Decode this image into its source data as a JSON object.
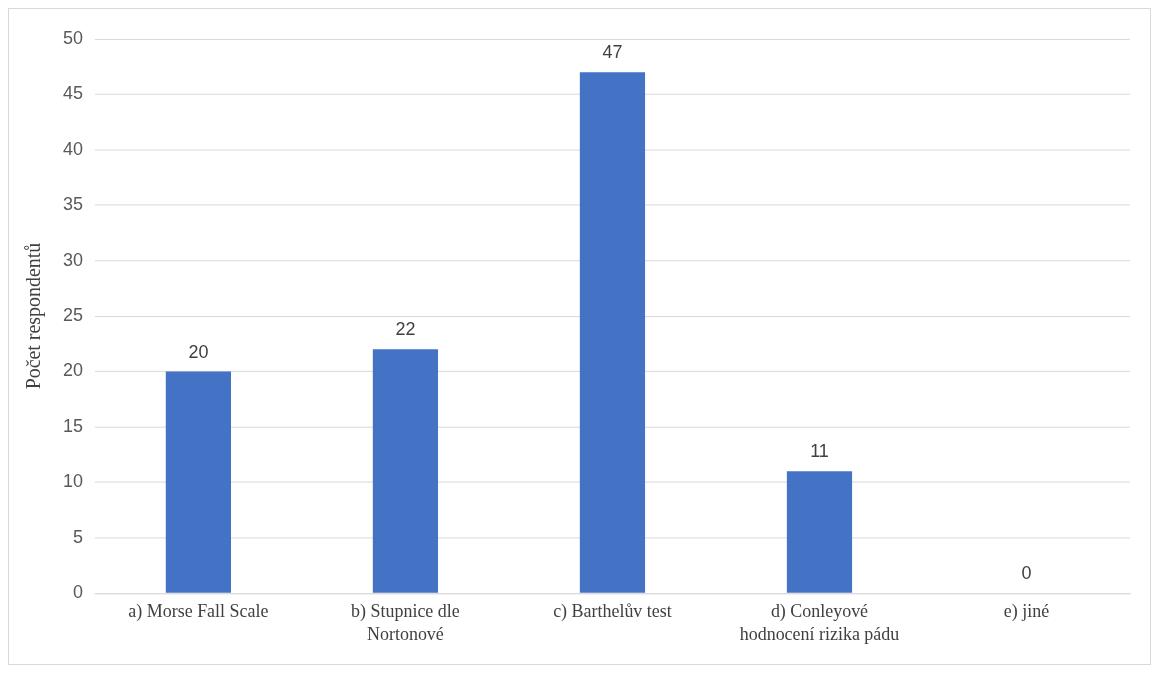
{
  "chart_data": {
    "type": "bar",
    "ylabel": "Počet respondentů",
    "categories": [
      "a) Morse Fall Scale",
      "b) Stupnice dle Nortonové",
      "c) Barthelův test",
      "d) Conleyové hodnocení rizika pádu",
      "e) jiné"
    ],
    "values": [
      20,
      22,
      47,
      11,
      0
    ],
    "color": "#4472c4",
    "ylim": [
      0,
      50
    ],
    "yticks": [
      0,
      5,
      10,
      15,
      20,
      25,
      30,
      35,
      40,
      45,
      50
    ],
    "grid": "y",
    "data_labels": true,
    "legend": false
  }
}
